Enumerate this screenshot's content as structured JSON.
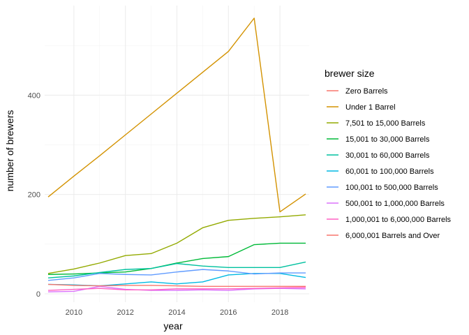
{
  "chart_data": {
    "type": "line",
    "title": "",
    "xlabel": "year",
    "ylabel": "number of brewers",
    "xlim": [
      2009,
      2019
    ],
    "ylim": [
      0,
      555
    ],
    "x_ticks": [
      2010,
      2012,
      2014,
      2016,
      2018
    ],
    "y_ticks": [
      0,
      200,
      400
    ],
    "grid": true,
    "legend": {
      "title": "brewer size",
      "position": "right"
    },
    "x": [
      2009,
      2010,
      2011,
      2012,
      2013,
      2014,
      2015,
      2016,
      2017,
      2018,
      2019
    ],
    "series": [
      {
        "name": "Zero Barrels",
        "color": "#F8766D",
        "values": [
          null,
          null,
          null,
          null,
          null,
          null,
          null,
          null,
          null,
          null,
          null
        ]
      },
      {
        "name": "Under 1 Barrel",
        "color": "#D39200",
        "values": [
          195,
          237,
          278,
          320,
          362,
          404,
          446,
          488,
          555,
          165,
          201
        ]
      },
      {
        "name": "7,501 to 15,000 Barrels",
        "color": "#93AA00",
        "values": [
          41,
          50,
          62,
          77,
          81,
          102,
          133,
          148,
          152,
          155,
          159
        ]
      },
      {
        "name": "15,001 to 30,000 Barrels",
        "color": "#00BA38",
        "values": [
          39,
          40,
          42,
          44,
          51,
          62,
          71,
          75,
          99,
          102,
          102
        ]
      },
      {
        "name": "30,001 to 60,000 Barrels",
        "color": "#00C19F",
        "values": [
          32,
          36,
          43,
          49,
          51,
          61,
          56,
          53,
          53,
          53,
          64
        ]
      },
      {
        "name": "60,001 to 100,000 Barrels",
        "color": "#00B9E3",
        "values": [
          19,
          18,
          16,
          20,
          24,
          20,
          24,
          38,
          41,
          41,
          33
        ]
      },
      {
        "name": "100,001 to 500,000 Barrels",
        "color": "#619CFF",
        "values": [
          27,
          32,
          41,
          39,
          38,
          44,
          49,
          46,
          40,
          42,
          42
        ]
      },
      {
        "name": "500,001 to 1,000,000 Barrels",
        "color": "#DB72FB",
        "values": [
          4,
          5,
          15,
          9,
          7,
          7,
          8,
          7,
          10,
          11,
          10
        ]
      },
      {
        "name": "1,000,001 to 6,000,000 Barrels",
        "color": "#FF61C3",
        "values": [
          7,
          9,
          11,
          8,
          8,
          10,
          10,
          10,
          11,
          12,
          13
        ]
      },
      {
        "name": "6,000,001 Barrels and Over",
        "color": "#F8766D",
        "values": [
          19,
          17,
          16,
          17,
          17,
          16,
          15,
          15,
          15,
          15,
          15
        ]
      }
    ]
  }
}
